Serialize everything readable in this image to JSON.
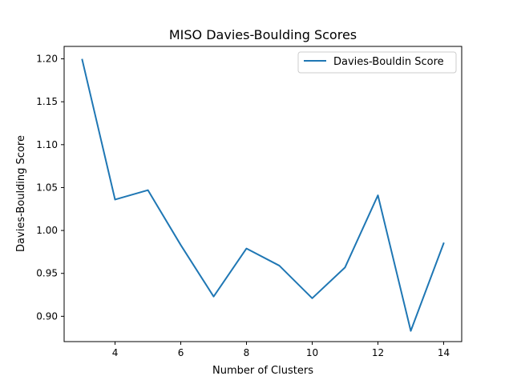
{
  "chart_data": {
    "type": "line",
    "title": "MISO Davies-Boulding Scores",
    "xlabel": "Number of Clusters",
    "ylabel": "Davies-Boulding Score",
    "xlim": [
      2.45,
      14.55
    ],
    "ylim": [
      0.8705,
      1.2145
    ],
    "x_ticks": [
      4,
      6,
      8,
      10,
      12,
      14
    ],
    "x_tick_labels": [
      "4",
      "6",
      "8",
      "10",
      "12",
      "14"
    ],
    "y_ticks": [
      0.9,
      0.95,
      1.0,
      1.05,
      1.1,
      1.15,
      1.2
    ],
    "y_tick_labels": [
      "0.90",
      "0.95",
      "1.00",
      "1.05",
      "1.10",
      "1.15",
      "1.20"
    ],
    "grid": false,
    "legend_position": "top-right",
    "series": [
      {
        "name": "Davies-Bouldin Score",
        "color": "#1f77b4",
        "x": [
          3,
          4,
          5,
          6,
          7,
          8,
          9,
          10,
          11,
          12,
          13,
          14
        ],
        "values": [
          1.199,
          1.036,
          1.047,
          0.983,
          0.923,
          0.979,
          0.959,
          0.921,
          0.957,
          1.041,
          0.883,
          0.985
        ]
      }
    ]
  }
}
